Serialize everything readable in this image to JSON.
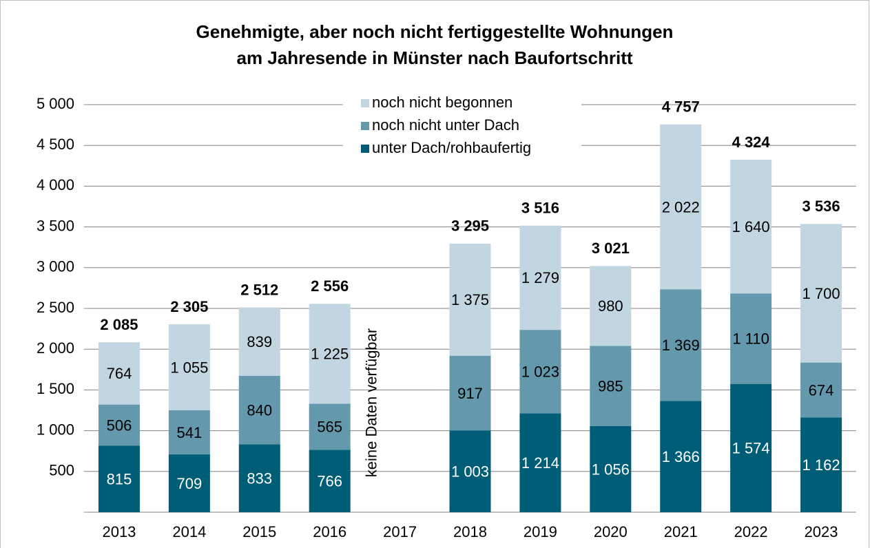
{
  "chart_data": {
    "type": "stacked_bar",
    "title": [
      "Genehmigte, aber noch nicht fertiggestellte Wohnungen",
      "am Jahresende in Münster nach Baufortschritt"
    ],
    "categories": [
      "2013",
      "2014",
      "2015",
      "2016",
      "2017",
      "2018",
      "2019",
      "2020",
      "2021",
      "2022",
      "2023"
    ],
    "series": [
      {
        "name": "unter Dach/rohbaufertig",
        "color": "#005d78",
        "values": [
          815,
          709,
          833,
          766,
          null,
          1003,
          1214,
          1056,
          1366,
          1574,
          1162
        ],
        "value_labels": [
          "815",
          "709",
          "833",
          "766",
          null,
          "1 003",
          "1 214",
          "1 056",
          "1 366",
          "1 574",
          "1 162"
        ]
      },
      {
        "name": "noch nicht unter Dach",
        "color": "#6498ad",
        "values": [
          506,
          541,
          840,
          565,
          null,
          917,
          1023,
          985,
          1369,
          1110,
          674
        ],
        "value_labels": [
          "506",
          "541",
          "840",
          "565",
          null,
          "917",
          "1 023",
          "985",
          "1 369",
          "1 110",
          "674"
        ]
      },
      {
        "name": "noch nicht begonnen",
        "color": "#c2d6e2",
        "values": [
          764,
          1055,
          839,
          1225,
          null,
          1375,
          1279,
          980,
          2022,
          1640,
          1700
        ],
        "value_labels": [
          "764",
          "1 055",
          "839",
          "1 225",
          null,
          "1 375",
          "1 279",
          "980",
          "2 022",
          "1 640",
          "1 700"
        ]
      }
    ],
    "totals": [
      2085,
      2305,
      2512,
      2556,
      null,
      3295,
      3516,
      3021,
      4757,
      4324,
      3536
    ],
    "total_labels": [
      "2 085",
      "2 305",
      "2 512",
      "2 556",
      null,
      "3 295",
      "3 516",
      "3 021",
      "4 757",
      "4 324",
      "3 536"
    ],
    "annotation": "keine Daten verfügbar",
    "annotation_category": "2017",
    "ylim": [
      0,
      5000
    ],
    "yticks": [
      500,
      {
        "value": 1000,
        "label": "1 000"
      },
      {
        "value": 1500,
        "label": "1 500"
      },
      {
        "value": 2000,
        "label": "2 000"
      },
      {
        "value": 2500,
        "label": "2 500"
      },
      {
        "value": 3000,
        "label": "3 000"
      },
      {
        "value": 3500,
        "label": "3 500"
      },
      {
        "value": 4000,
        "label": "4 000"
      },
      {
        "value": 4500,
        "label": "4 500"
      },
      {
        "value": 5000,
        "label": "5 000"
      }
    ],
    "grid": true,
    "legend": "top"
  }
}
